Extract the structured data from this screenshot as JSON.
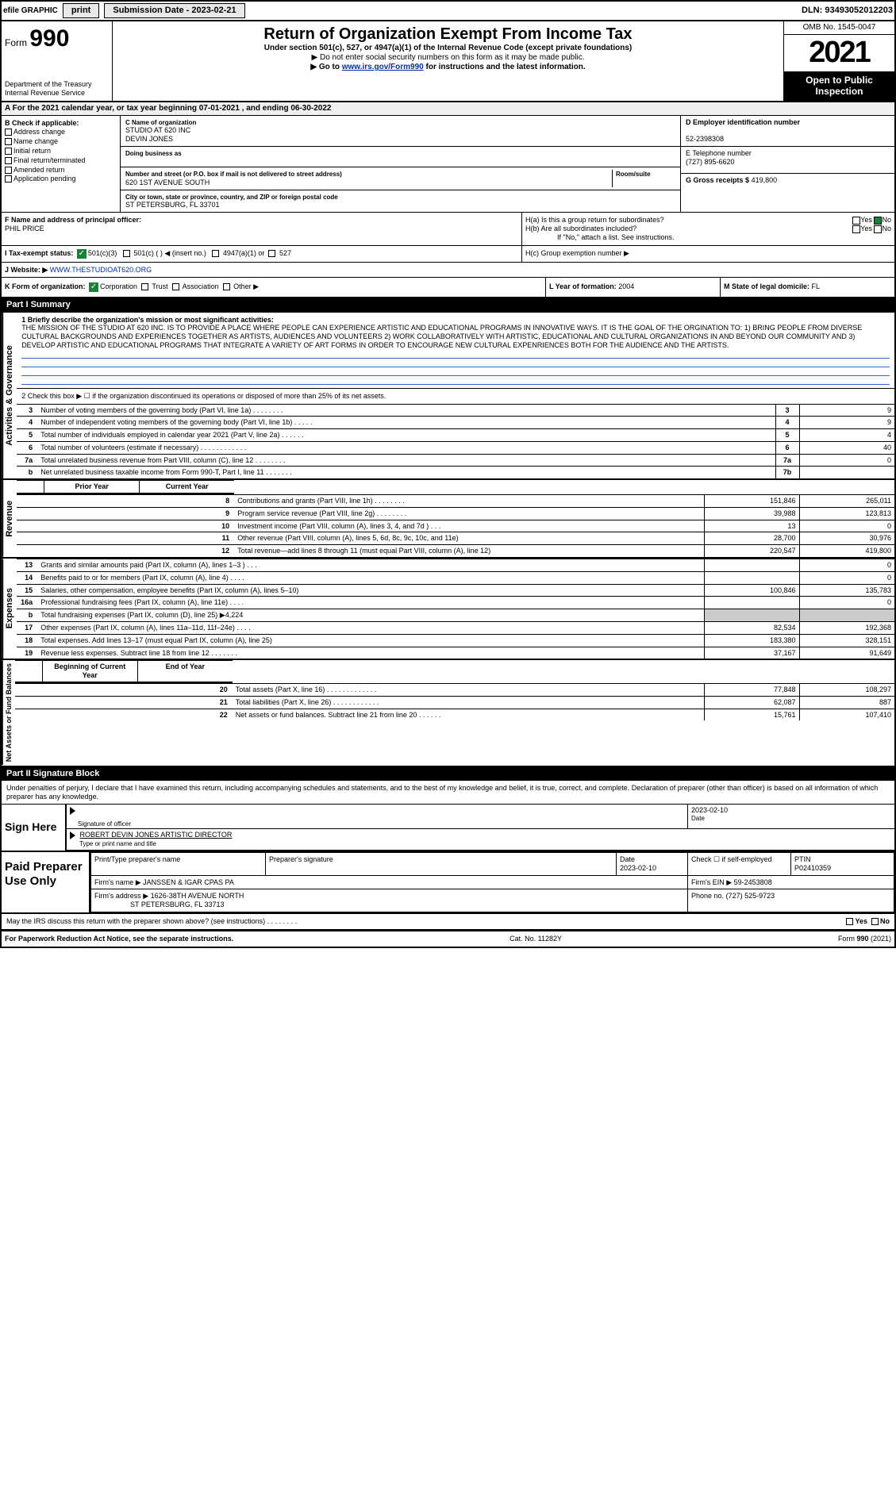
{
  "topbar": {
    "efile": "efile GRAPHIC",
    "print": "print",
    "submission": "Submission Date - 2023-02-21",
    "dln": "DLN: 93493052012203"
  },
  "header": {
    "form_prefix": "Form",
    "form_no": "990",
    "dept": "Department of the Treasury",
    "irs": "Internal Revenue Service",
    "title": "Return of Organization Exempt From Income Tax",
    "sub": "Under section 501(c), 527, or 4947(a)(1) of the Internal Revenue Code (except private foundations)",
    "note1": "▶ Do not enter social security numbers on this form as it may be made public.",
    "note2_pre": "▶ Go to ",
    "note2_link": "www.irs.gov/Form990",
    "note2_post": " for instructions and the latest information.",
    "omb": "OMB No. 1545-0047",
    "year": "2021",
    "open": "Open to Public Inspection"
  },
  "A": {
    "text_pre": "A For the 2021 calendar year, or tax year beginning ",
    "begin": "07-01-2021",
    "mid": " , and ending ",
    "end": "06-30-2022"
  },
  "B": {
    "hdr": "B Check if applicable:",
    "items": [
      "Address change",
      "Name change",
      "Initial return",
      "Final return/terminated",
      "Amended return",
      "Application pending"
    ]
  },
  "C": {
    "lbl": "C Name of organization",
    "name": "STUDIO AT 620 INC",
    "name2": "DEVIN JONES",
    "dba_lbl": "Doing business as",
    "addr_lbl": "Number and street (or P.O. box if mail is not delivered to street address)",
    "room_lbl": "Room/suite",
    "addr": "620 1ST AVENUE SOUTH",
    "city_lbl": "City or town, state or province, country, and ZIP or foreign postal code",
    "city": "ST PETERSBURG, FL  33701"
  },
  "D": {
    "lbl": "D Employer identification number",
    "val": "52-2398308"
  },
  "E": {
    "lbl": "E Telephone number",
    "val": "(727) 895-6620"
  },
  "G": {
    "lbl": "G Gross receipts $",
    "val": "419,800"
  },
  "F": {
    "lbl": "F  Name and address of principal officer:",
    "val": "PHIL PRICE"
  },
  "H": {
    "a": "H(a)  Is this a group return for subordinates?",
    "b": "H(b)  Are all subordinates included?",
    "b_note": "If \"No,\" attach a list. See instructions.",
    "c": "H(c)  Group exemption number ▶",
    "yes": "Yes",
    "no": "No"
  },
  "I": {
    "lbl": "I    Tax-exempt status:",
    "opts": [
      "501(c)(3)",
      "501(c) (  ) ◀ (insert no.)",
      "4947(a)(1) or",
      "527"
    ]
  },
  "J": {
    "lbl": "J   Website: ▶",
    "val": "WWW.THESTUDIOAT620.ORG"
  },
  "K": {
    "lbl": "K Form of organization:",
    "opts": [
      "Corporation",
      "Trust",
      "Association",
      "Other ▶"
    ]
  },
  "L": {
    "lbl": "L Year of formation:",
    "val": "2004"
  },
  "M": {
    "lbl": "M State of legal domicile:",
    "val": "FL"
  },
  "part1": {
    "hdr": "Part I      Summary",
    "side_gov": "Activities & Governance",
    "side_rev": "Revenue",
    "side_exp": "Expenses",
    "side_net": "Net Assets or Fund Balances",
    "q1_lbl": "1   Briefly describe the organization's mission or most significant activities:",
    "q1_txt": "THE MISSION OF THE STUDIO AT 620 INC. IS TO PROVIDE A PLACE WHERE PEOPLE CAN EXPERIENCE ARTISTIC AND EDUCATIONAL PROGRAMS IN INNOVATIVE WAYS. IT IS THE GOAL OF THE ORGINATION TO: 1) BRING PEOPLE FROM DIVERSE CULTURAL BACKGROUNDS AND EXPERIENCES TOGETHER AS ARTISTS, AUDIENCES AND VOLUNTEERS 2) WORK COLLABORATIVELY WITH ARTISTIC, EDUCATIONAL AND CULTURAL ORGANIZATIONS IN AND BEYOND OUR COMMUNITY AND 3) DEVELOP ARTISTIC AND EDUCATIONAL PROGRAMS THAT INTEGRATE A VARIETY OF ART FORMS IN ORDER TO ENCOURAGE NEW CULTURAL EXPENRIENCES BOTH FOR THE AUDIENCE AND THE ARTISTS.",
    "q2": "2   Check this box ▶ ☐ if the organization discontinued its operations or disposed of more than 25% of its net assets.",
    "lines_gov": [
      {
        "n": "3",
        "t": "Number of voting members of the governing body (Part VI, line 1a)   .    .    .    .    .    .    .    .",
        "box": "3",
        "v": "9"
      },
      {
        "n": "4",
        "t": "Number of independent voting members of the governing body (Part VI, line 1b)    .    .    .    .    .",
        "box": "4",
        "v": "9"
      },
      {
        "n": "5",
        "t": "Total number of individuals employed in calendar year 2021 (Part V, line 2a)    .    .    .    .    .    .",
        "box": "5",
        "v": "4"
      },
      {
        "n": "6",
        "t": "Total number of volunteers (estimate if necessary)    .    .    .    .    .    .    .    .    .    .    .    .",
        "box": "6",
        "v": "40"
      },
      {
        "n": "7a",
        "t": "Total unrelated business revenue from Part VIII, column (C), line 12    .    .    .    .    .    .    .    .",
        "box": "7a",
        "v": "0"
      },
      {
        "n": "b",
        "t": "Net unrelated business taxable income from Form 990-T, Part I, line 11    .    .    .    .    .    .    .",
        "box": "7b",
        "v": ""
      }
    ],
    "col_prior": "Prior Year",
    "col_curr": "Current Year",
    "lines_rev": [
      {
        "n": "8",
        "t": "Contributions and grants (Part VIII, line 1h)    .    .    .    .    .    .    .    .",
        "p": "151,846",
        "c": "265,011"
      },
      {
        "n": "9",
        "t": "Program service revenue (Part VIII, line 2g)   .    .    .    .    .    .    .    .",
        "p": "39,988",
        "c": "123,813"
      },
      {
        "n": "10",
        "t": "Investment income (Part VIII, column (A), lines 3, 4, and 7d )    .    .    .",
        "p": "13",
        "c": "0"
      },
      {
        "n": "11",
        "t": "Other revenue (Part VIII, column (A), lines 5, 6d, 8c, 9c, 10c, and 11e)",
        "p": "28,700",
        "c": "30,976"
      },
      {
        "n": "12",
        "t": "Total revenue—add lines 8 through 11 (must equal Part VIII, column (A), line 12)",
        "p": "220,547",
        "c": "419,800"
      }
    ],
    "lines_exp": [
      {
        "n": "13",
        "t": "Grants and similar amounts paid (Part IX, column (A), lines 1–3 )   .    .    .",
        "p": "",
        "c": "0"
      },
      {
        "n": "14",
        "t": "Benefits paid to or for members (Part IX, column (A), line 4)    .    .    .    .",
        "p": "",
        "c": "0"
      },
      {
        "n": "15",
        "t": "Salaries, other compensation, employee benefits (Part IX, column (A), lines 5–10)",
        "p": "100,846",
        "c": "135,783"
      },
      {
        "n": "16a",
        "t": "Professional fundraising fees (Part IX, column (A), line 11e)    .    .    .    .",
        "p": "",
        "c": "0"
      },
      {
        "n": "b",
        "t": "Total fundraising expenses (Part IX, column (D), line 25) ▶4,224",
        "p": "grey",
        "c": "grey"
      },
      {
        "n": "17",
        "t": "Other expenses (Part IX, column (A), lines 11a–11d, 11f–24e)    .    .    .    .",
        "p": "82,534",
        "c": "192,368"
      },
      {
        "n": "18",
        "t": "Total expenses. Add lines 13–17 (must equal Part IX, column (A), line 25)",
        "p": "183,380",
        "c": "328,151"
      },
      {
        "n": "19",
        "t": "Revenue less expenses. Subtract line 18 from line 12    .    .    .    .    .    .    .",
        "p": "37,167",
        "c": "91,649"
      }
    ],
    "col_begin": "Beginning of Current Year",
    "col_end": "End of Year",
    "lines_net": [
      {
        "n": "20",
        "t": "Total assets (Part X, line 16)   .    .    .    .    .    .    .    .    .    .    .    .    .",
        "p": "77,848",
        "c": "108,297"
      },
      {
        "n": "21",
        "t": "Total liabilities (Part X, line 26)   .    .    .    .    .    .    .    .    .    .    .    .",
        "p": "62,087",
        "c": "887"
      },
      {
        "n": "22",
        "t": "Net assets or fund balances. Subtract line 21 from line 20   .    .    .    .    .    .",
        "p": "15,761",
        "c": "107,410"
      }
    ]
  },
  "part2": {
    "hdr": "Part II      Signature Block",
    "declar": "Under penalties of perjury, I declare that I have examined this return, including accompanying schedules and statements, and to the best of my knowledge and belief, it is true, correct, and complete. Declaration of preparer (other than officer) is based on all information of which preparer has any knowledge.",
    "sign_lbl": "Sign Here",
    "sig_of": "Signature of officer",
    "date_lbl": "Date",
    "date": "2023-02-10",
    "name": "ROBERT DEVIN JONES ARTISTIC DIRECTOR",
    "name_lbl": "Type or print name and title",
    "paid_lbl": "Paid Preparer Use Only",
    "p_name_lbl": "Print/Type preparer's name",
    "p_sig_lbl": "Preparer's signature",
    "p_date": "2023-02-10",
    "p_check": "Check ☐ if self-employed",
    "ptin_lbl": "PTIN",
    "ptin": "P02410359",
    "firm_lbl": "Firm's name    ▶",
    "firm": "JANSSEN & IGAR CPAS PA",
    "ein_lbl": "Firm's EIN ▶",
    "ein": "59-2453808",
    "addr_lbl": "Firm's address ▶",
    "addr1": "1626-38TH AVENUE NORTH",
    "addr2": "ST PETERSBURG, FL  33713",
    "phone_lbl": "Phone no.",
    "phone": "(727) 525-9723",
    "discuss": "May the IRS discuss this return with the preparer shown above? (see instructions)    .    .    .    .    .    .    .    .",
    "yes": "Yes",
    "no": "No"
  },
  "footer": {
    "left": "For Paperwork Reduction Act Notice, see the separate instructions.",
    "mid": "Cat. No. 11282Y",
    "right": "Form 990 (2021)"
  }
}
